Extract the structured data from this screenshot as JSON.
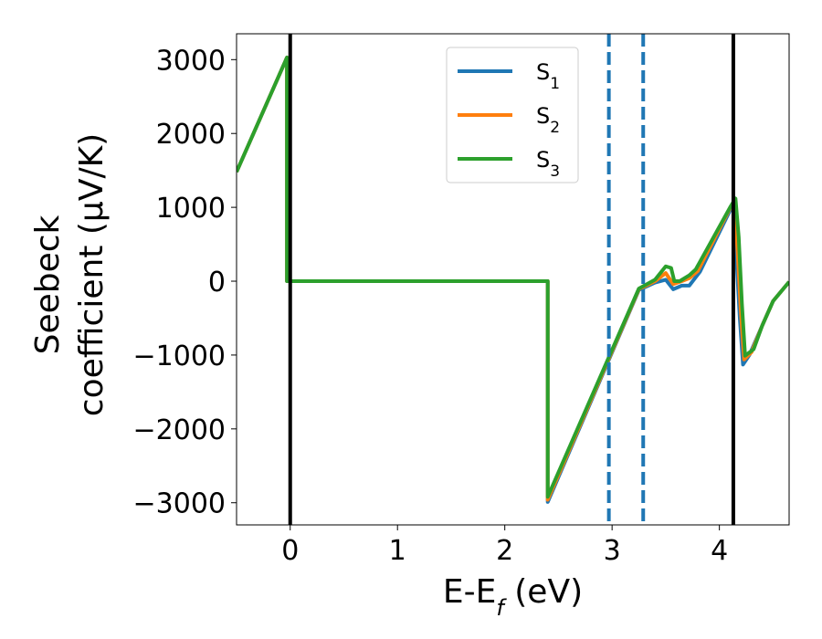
{
  "chart_data": {
    "type": "line",
    "xlabel": "E-E",
    "xlabel_sub": "f",
    "xlabel_unit": " (eV)",
    "ylabel_line1": "Seebeck",
    "ylabel_line2": "coefficient  (μV/K)",
    "xlim": [
      -0.5,
      4.65
    ],
    "ylim": [
      -3300,
      3350
    ],
    "xticks": [
      0,
      1,
      2,
      3,
      4
    ],
    "yticks": [
      -3000,
      -2000,
      -1000,
      0,
      1000,
      2000,
      3000
    ],
    "xtick_labels": [
      "0",
      "1",
      "2",
      "3",
      "4"
    ],
    "ytick_labels": [
      "−3000",
      "−2000",
      "−1000",
      "0",
      "1000",
      "2000",
      "3000"
    ],
    "legend_position": "top-center",
    "vertical_lines": [
      {
        "x": 0.0,
        "style": "solid",
        "color": "#000000"
      },
      {
        "x": 4.13,
        "style": "solid",
        "color": "#000000"
      },
      {
        "x": 2.97,
        "style": "dashed",
        "color": "#1f77b4"
      },
      {
        "x": 3.29,
        "style": "dashed",
        "color": "#1f77b4"
      }
    ],
    "series": [
      {
        "name_base": "S",
        "name_sub": "1",
        "color": "#1f77b4",
        "points": [
          [
            -0.5,
            1480
          ],
          [
            -0.03,
            3030
          ],
          [
            -0.03,
            0
          ],
          [
            2.4,
            0
          ],
          [
            2.4,
            -2990
          ],
          [
            3.25,
            -120
          ],
          [
            3.4,
            -20
          ],
          [
            3.5,
            20
          ],
          [
            3.57,
            -110
          ],
          [
            3.65,
            -60
          ],
          [
            3.72,
            -60
          ],
          [
            3.82,
            130
          ],
          [
            4.1,
            960
          ],
          [
            4.13,
            1010
          ],
          [
            4.16,
            300
          ],
          [
            4.19,
            -500
          ],
          [
            4.22,
            -1130
          ],
          [
            4.28,
            -1000
          ],
          [
            4.4,
            -600
          ],
          [
            4.5,
            -270
          ],
          [
            4.65,
            -10
          ]
        ]
      },
      {
        "name_base": "S",
        "name_sub": "2",
        "color": "#ff7f0e",
        "points": [
          [
            -0.5,
            1480
          ],
          [
            -0.03,
            3030
          ],
          [
            -0.03,
            0
          ],
          [
            2.4,
            0
          ],
          [
            2.4,
            -2960
          ],
          [
            3.25,
            -110
          ],
          [
            3.4,
            0
          ],
          [
            3.5,
            110
          ],
          [
            3.57,
            -40
          ],
          [
            3.65,
            0
          ],
          [
            3.72,
            40
          ],
          [
            3.8,
            140
          ],
          [
            4.1,
            990
          ],
          [
            4.14,
            1050
          ],
          [
            4.17,
            400
          ],
          [
            4.2,
            -400
          ],
          [
            4.23,
            -1060
          ],
          [
            4.3,
            -960
          ],
          [
            4.4,
            -600
          ],
          [
            4.5,
            -270
          ],
          [
            4.65,
            -10
          ]
        ]
      },
      {
        "name_base": "S",
        "name_sub": "3",
        "color": "#2ca02c",
        "points": [
          [
            -0.5,
            1480
          ],
          [
            -0.03,
            3030
          ],
          [
            -0.03,
            0
          ],
          [
            2.4,
            0
          ],
          [
            2.4,
            -2920
          ],
          [
            3.25,
            -100
          ],
          [
            3.4,
            20
          ],
          [
            3.5,
            200
          ],
          [
            3.55,
            180
          ],
          [
            3.58,
            0
          ],
          [
            3.63,
            0
          ],
          [
            3.72,
            80
          ],
          [
            3.78,
            160
          ],
          [
            4.1,
            1000
          ],
          [
            4.15,
            1120
          ],
          [
            4.18,
            600
          ],
          [
            4.21,
            -300
          ],
          [
            4.24,
            -1010
          ],
          [
            4.32,
            -920
          ],
          [
            4.4,
            -600
          ],
          [
            4.5,
            -270
          ],
          [
            4.65,
            -10
          ]
        ]
      }
    ]
  }
}
